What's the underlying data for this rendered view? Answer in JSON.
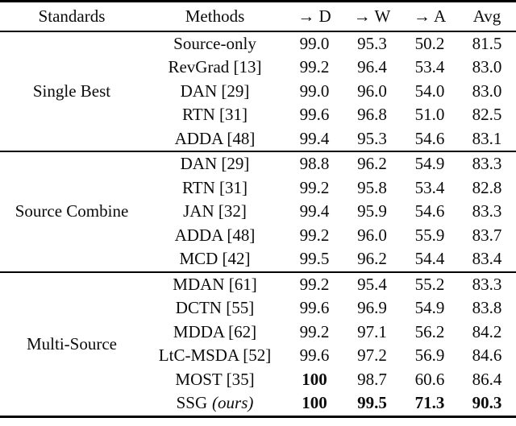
{
  "table": {
    "header": {
      "standards": "Standards",
      "methods": "Methods",
      "d": "→ D",
      "w": "→ W",
      "a": "→ A",
      "avg": "Avg"
    },
    "sections": [
      {
        "standard": "Single Best",
        "rows": [
          {
            "method": "Source-only",
            "d": "99.0",
            "w": "95.3",
            "a": "50.2",
            "avg": "81.5"
          },
          {
            "method": "RevGrad [13]",
            "d": "99.2",
            "w": "96.4",
            "a": "53.4",
            "avg": "83.0"
          },
          {
            "method": "DAN [29]",
            "d": "99.0",
            "w": "96.0",
            "a": "54.0",
            "avg": "83.0"
          },
          {
            "method": "RTN [31]",
            "d": "99.6",
            "w": "96.8",
            "a": "51.0",
            "avg": "82.5"
          },
          {
            "method": "ADDA [48]",
            "d": "99.4",
            "w": "95.3",
            "a": "54.6",
            "avg": "83.1"
          }
        ]
      },
      {
        "standard": "Source Combine",
        "rows": [
          {
            "method": "DAN [29]",
            "d": "98.8",
            "w": "96.2",
            "a": "54.9",
            "avg": "83.3"
          },
          {
            "method": "RTN [31]",
            "d": "99.2",
            "w": "95.8",
            "a": "53.4",
            "avg": "82.8"
          },
          {
            "method": "JAN [32]",
            "d": "99.4",
            "w": "95.9",
            "a": "54.6",
            "avg": "83.3"
          },
          {
            "method": "ADDA [48]",
            "d": "99.2",
            "w": "96.0",
            "a": "55.9",
            "avg": "83.7"
          },
          {
            "method": "MCD [42]",
            "d": "99.5",
            "w": "96.2",
            "a": "54.4",
            "avg": "83.4"
          }
        ]
      },
      {
        "standard": "Multi-Source",
        "rows": [
          {
            "method": "MDAN [61]",
            "d": "99.2",
            "w": "95.4",
            "a": "55.2",
            "avg": "83.3"
          },
          {
            "method": "DCTN [55]",
            "d": "99.6",
            "w": "96.9",
            "a": "54.9",
            "avg": "83.8"
          },
          {
            "method": "MDDA [62]",
            "d": "99.2",
            "w": "97.1",
            "a": "56.2",
            "avg": "84.2"
          },
          {
            "method": "LtC-MSDA [52]",
            "d": "99.6",
            "w": "97.2",
            "a": "56.9",
            "avg": "84.6"
          },
          {
            "method": "MOST [35]",
            "d": "100",
            "w": "98.7",
            "a": "60.6",
            "avg": "86.4"
          },
          {
            "method": "SSG",
            "method_suffix": "(ours)",
            "d": "100",
            "w": "99.5",
            "a": "71.3",
            "avg": "90.3"
          }
        ]
      }
    ]
  }
}
